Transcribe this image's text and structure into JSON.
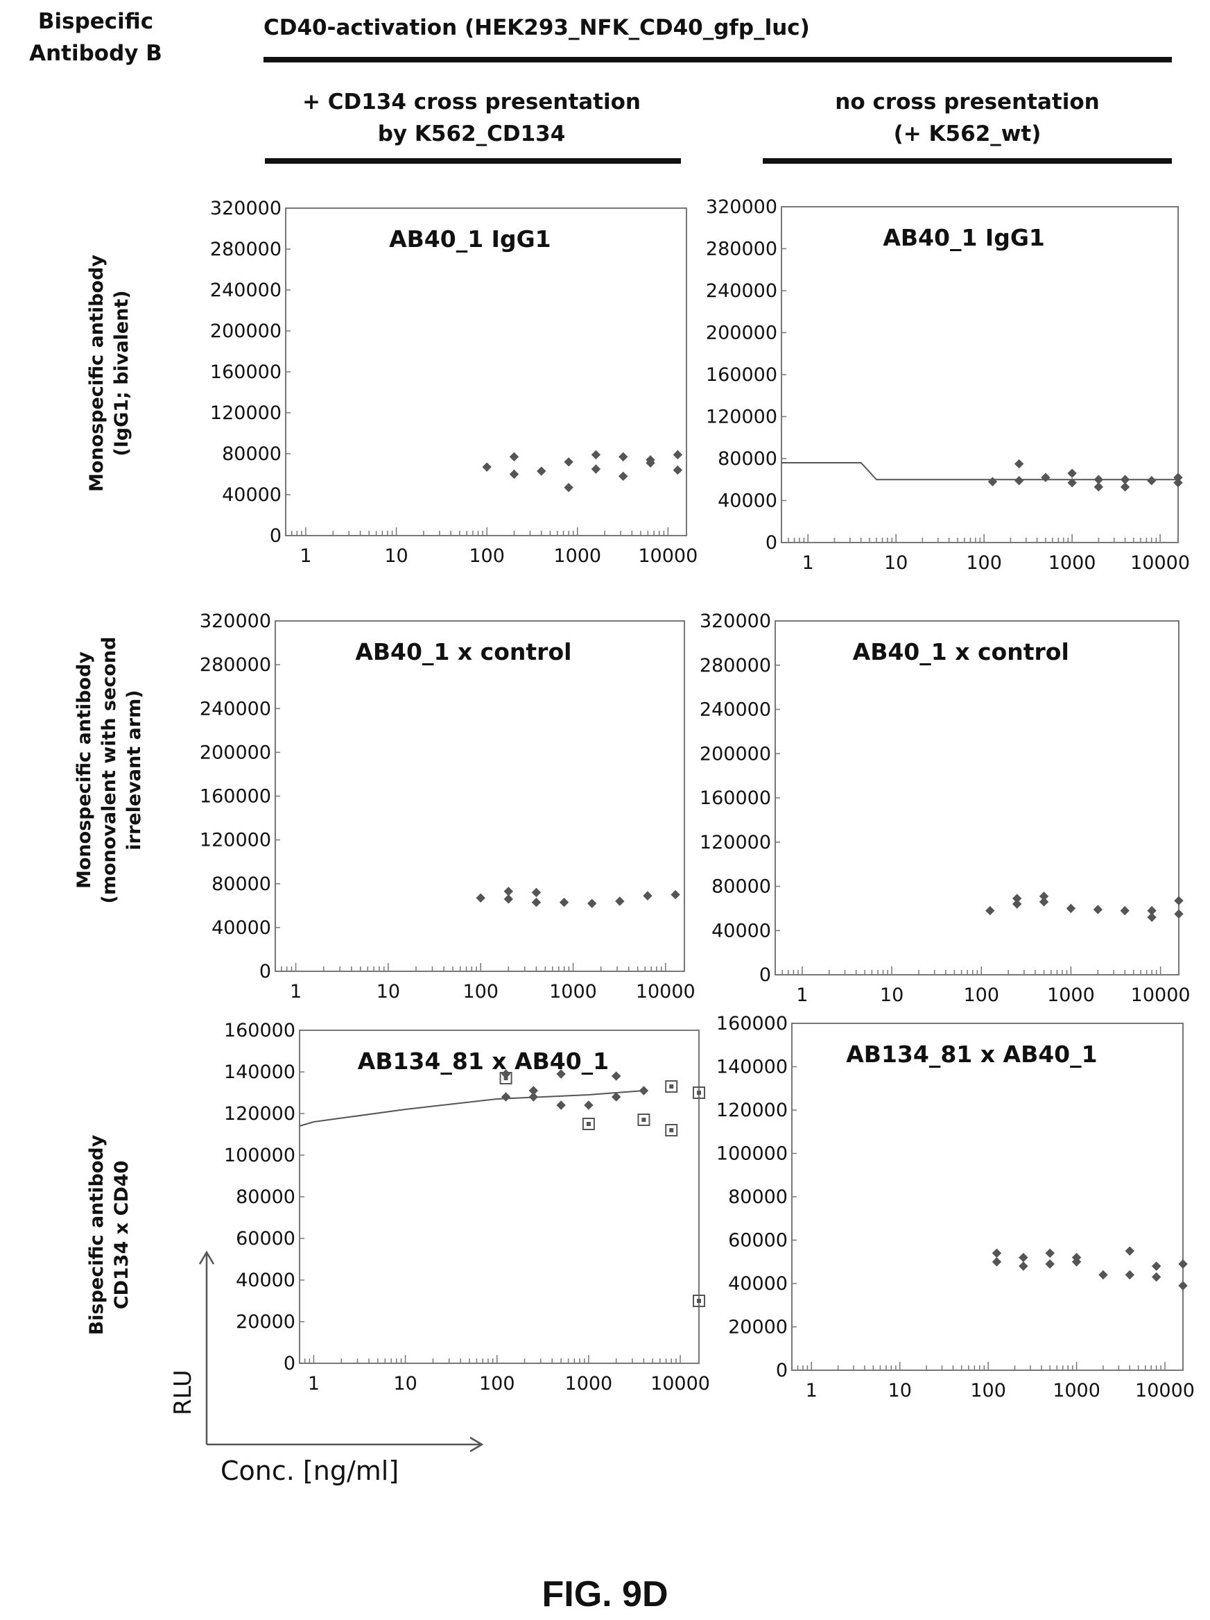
{
  "header": {
    "corner_label_line1": "Bispecific",
    "corner_label_line2": "Antibody B",
    "main_title": "CD40-activation (HEK293_NFK_CD40_gfp_luc)",
    "col_left_line1": "+ CD134 cross presentation",
    "col_left_line2": "by K562_CD134",
    "col_right_line1": "no cross presentation",
    "col_right_line2": "(+ K562_wt)"
  },
  "rows": [
    {
      "line1": "Monospecific antibody",
      "line2": "(IgG1; bivalent)"
    },
    {
      "line1": "Monospecific antibody",
      "line2": "(monovalent with second",
      "line3": "irrelevant arm)"
    },
    {
      "line1": "Bispecific antibody",
      "line2": "CD134  x CD40"
    }
  ],
  "legend_axes": {
    "y_label": "RLU",
    "x_label": "Conc. [ng/ml]"
  },
  "figure_label": "FIG. 9D",
  "colors": {
    "marker": "#555555",
    "frame": "#777777",
    "fit_line": "#555555",
    "text": "#111111"
  },
  "chart_data": [
    {
      "type": "scatter",
      "title": "AB40_1 IgG1",
      "x_scale": "log",
      "xlim": [
        0.6,
        16000
      ],
      "ylim": [
        0,
        320000
      ],
      "yticks": [
        0,
        40000,
        80000,
        120000,
        160000,
        200000,
        240000,
        280000,
        320000
      ],
      "xticks": [
        1,
        10,
        100,
        1000,
        10000
      ],
      "series": [
        {
          "marker": "diamond",
          "points": [
            [
              100,
              67000
            ],
            [
              200,
              77000
            ],
            [
              200,
              60000
            ],
            [
              400,
              63000
            ],
            [
              800,
              72000
            ],
            [
              800,
              47000
            ],
            [
              1600,
              79000
            ],
            [
              1600,
              65000
            ],
            [
              3200,
              77000
            ],
            [
              3200,
              58000
            ],
            [
              6400,
              74000
            ],
            [
              6400,
              71000
            ],
            [
              12800,
              79000
            ],
            [
              12800,
              64000
            ]
          ]
        }
      ],
      "fit_line": []
    },
    {
      "type": "scatter",
      "title": "AB40_1 IgG1",
      "x_scale": "log",
      "xlim": [
        0.5,
        16000
      ],
      "ylim": [
        0,
        320000
      ],
      "yticks": [
        0,
        40000,
        80000,
        120000,
        160000,
        200000,
        240000,
        280000,
        320000
      ],
      "xticks": [
        1,
        10,
        100,
        1000,
        10000
      ],
      "series": [
        {
          "marker": "diamond",
          "points": [
            [
              125,
              58000
            ],
            [
              250,
              75000
            ],
            [
              250,
              59000
            ],
            [
              500,
              62000
            ],
            [
              1000,
              66000
            ],
            [
              1000,
              57000
            ],
            [
              2000,
              60000
            ],
            [
              2000,
              53000
            ],
            [
              4000,
              60000
            ],
            [
              4000,
              53000
            ],
            [
              8000,
              59000
            ],
            [
              16000,
              62000
            ],
            [
              16000,
              57000
            ]
          ]
        }
      ],
      "fit_line": [
        [
          0.5,
          76000
        ],
        [
          4,
          76000
        ],
        [
          6,
          60000
        ],
        [
          16000,
          60000
        ]
      ]
    },
    {
      "type": "scatter",
      "title": "AB40_1 x control",
      "x_scale": "log",
      "xlim": [
        0.6,
        16000
      ],
      "ylim": [
        0,
        320000
      ],
      "yticks": [
        0,
        40000,
        80000,
        120000,
        160000,
        200000,
        240000,
        280000,
        320000
      ],
      "xticks": [
        1,
        10,
        100,
        1000,
        10000
      ],
      "series": [
        {
          "marker": "diamond",
          "points": [
            [
              100,
              67000
            ],
            [
              200,
              73000
            ],
            [
              200,
              66000
            ],
            [
              400,
              72000
            ],
            [
              400,
              63000
            ],
            [
              800,
              63000
            ],
            [
              1600,
              62000
            ],
            [
              3200,
              64000
            ],
            [
              6400,
              69000
            ],
            [
              12800,
              70000
            ]
          ]
        }
      ],
      "fit_line": []
    },
    {
      "type": "scatter",
      "title": "AB40_1 x control",
      "x_scale": "log",
      "xlim": [
        0.5,
        16000
      ],
      "ylim": [
        0,
        320000
      ],
      "yticks": [
        0,
        40000,
        80000,
        120000,
        160000,
        200000,
        240000,
        280000,
        320000
      ],
      "xticks": [
        1,
        10,
        100,
        1000,
        10000
      ],
      "series": [
        {
          "marker": "diamond",
          "points": [
            [
              125,
              58000
            ],
            [
              250,
              69000
            ],
            [
              250,
              64000
            ],
            [
              500,
              71000
            ],
            [
              500,
              66000
            ],
            [
              1000,
              60000
            ],
            [
              2000,
              59000
            ],
            [
              4000,
              58000
            ],
            [
              8000,
              58000
            ],
            [
              8000,
              52000
            ],
            [
              16000,
              67000
            ],
            [
              16000,
              55000
            ]
          ]
        }
      ],
      "fit_line": []
    },
    {
      "type": "scatter",
      "title": "AB134_81 x AB40_1",
      "x_scale": "log",
      "xlim": [
        0.7,
        16000
      ],
      "ylim": [
        0,
        160000
      ],
      "yticks": [
        0,
        20000,
        40000,
        60000,
        80000,
        100000,
        120000,
        140000,
        160000
      ],
      "xticks": [
        1,
        10,
        100,
        1000,
        10000
      ],
      "series": [
        {
          "marker": "diamond",
          "points": [
            [
              125,
              139000
            ],
            [
              125,
              128000
            ],
            [
              250,
              131000
            ],
            [
              250,
              128000
            ],
            [
              500,
              139000
            ],
            [
              500,
              124000
            ],
            [
              1000,
              124000
            ],
            [
              2000,
              138000
            ],
            [
              2000,
              128000
            ],
            [
              4000,
              131000
            ]
          ]
        },
        {
          "marker": "square",
          "points": [
            [
              125,
              137000
            ],
            [
              1000,
              115000
            ],
            [
              4000,
              117000
            ],
            [
              8000,
              133000
            ],
            [
              8000,
              112000
            ],
            [
              16000,
              130000
            ],
            [
              16000,
              30000
            ]
          ]
        }
      ],
      "fit_line": [
        [
          0.7,
          114000
        ],
        [
          1,
          116000
        ],
        [
          10,
          122000
        ],
        [
          100,
          127000
        ],
        [
          1000,
          129000
        ],
        [
          4000,
          131000
        ]
      ]
    },
    {
      "type": "scatter",
      "title": "AB134_81 x AB40_1",
      "x_scale": "log",
      "xlim": [
        0.6,
        16000
      ],
      "ylim": [
        0,
        160000
      ],
      "yticks": [
        0,
        20000,
        40000,
        60000,
        80000,
        100000,
        120000,
        140000,
        160000
      ],
      "xticks": [
        1,
        10,
        100,
        1000,
        10000
      ],
      "series": [
        {
          "marker": "diamond",
          "points": [
            [
              125,
              54000
            ],
            [
              125,
              50000
            ],
            [
              250,
              52000
            ],
            [
              250,
              48000
            ],
            [
              500,
              54000
            ],
            [
              500,
              49000
            ],
            [
              1000,
              52000
            ],
            [
              1000,
              50000
            ],
            [
              2000,
              44000
            ],
            [
              4000,
              55000
            ],
            [
              4000,
              44000
            ],
            [
              8000,
              48000
            ],
            [
              8000,
              43000
            ],
            [
              16000,
              49000
            ],
            [
              16000,
              39000
            ]
          ]
        }
      ],
      "fit_line": []
    }
  ]
}
